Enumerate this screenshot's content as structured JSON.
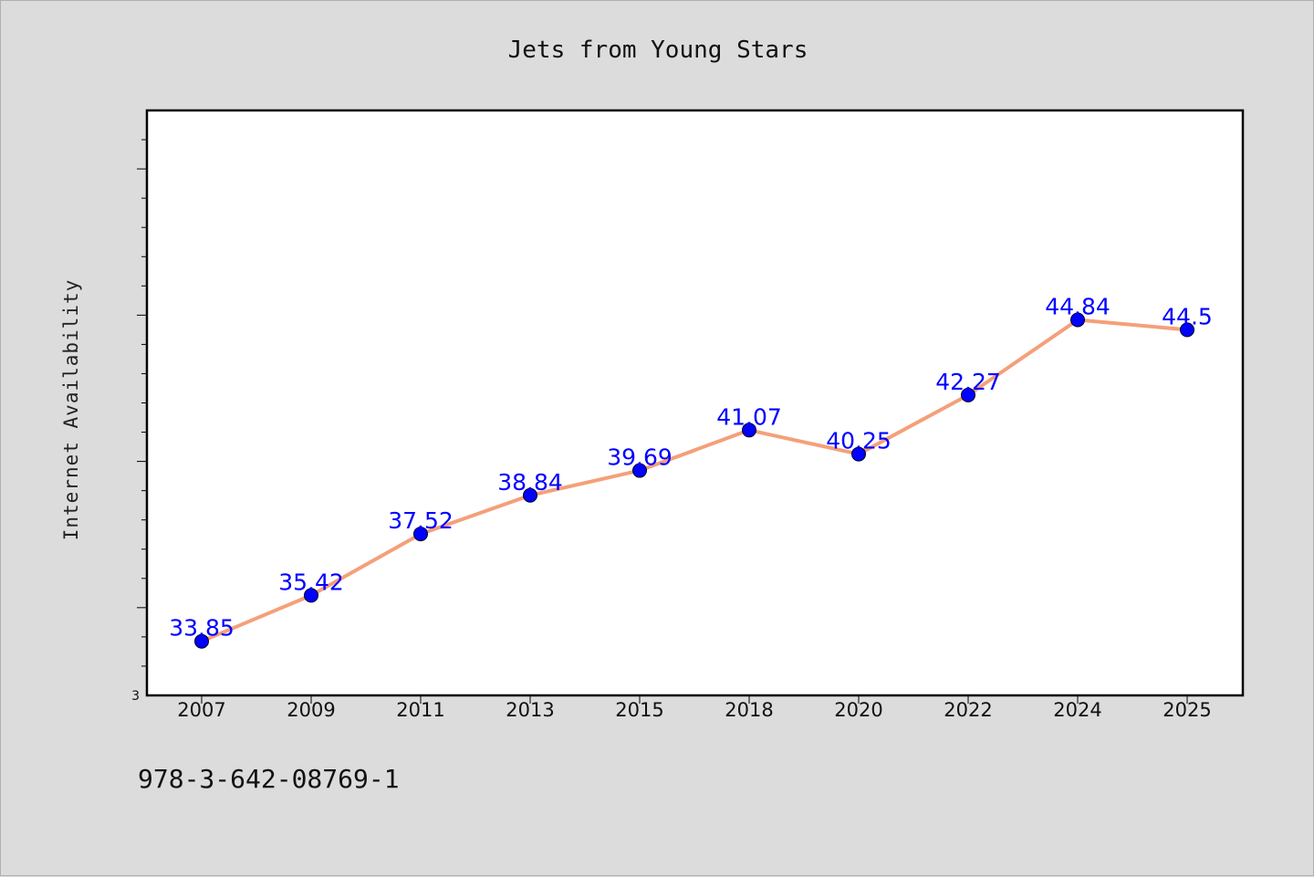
{
  "chart_data": {
    "type": "line",
    "title": "Jets from Young Stars",
    "xlabel": "",
    "ylabel": "Internet Availability",
    "categories": [
      "2007",
      "2009",
      "2011",
      "2013",
      "2015",
      "2018",
      "2020",
      "2022",
      "2024",
      "2025"
    ],
    "series": [
      {
        "values": [
          33.85,
          35.42,
          37.52,
          38.84,
          39.69,
          41.07,
          40.25,
          42.27,
          44.84,
          44.5
        ]
      }
    ],
    "data_labels": [
      "33.85",
      "35.42",
      "37.52",
      "38.84",
      "39.69",
      "41.07",
      "40.25",
      "42.27",
      "44.84",
      "44.5"
    ],
    "y_tick_labels": [
      "3"
    ],
    "ylim": [
      32.0,
      52.0
    ],
    "grid": false,
    "line_color": "#f4a07a",
    "marker_color": "#0000ff",
    "label_color": "#0000ff"
  },
  "footer_text": "978-3-642-08769-1"
}
